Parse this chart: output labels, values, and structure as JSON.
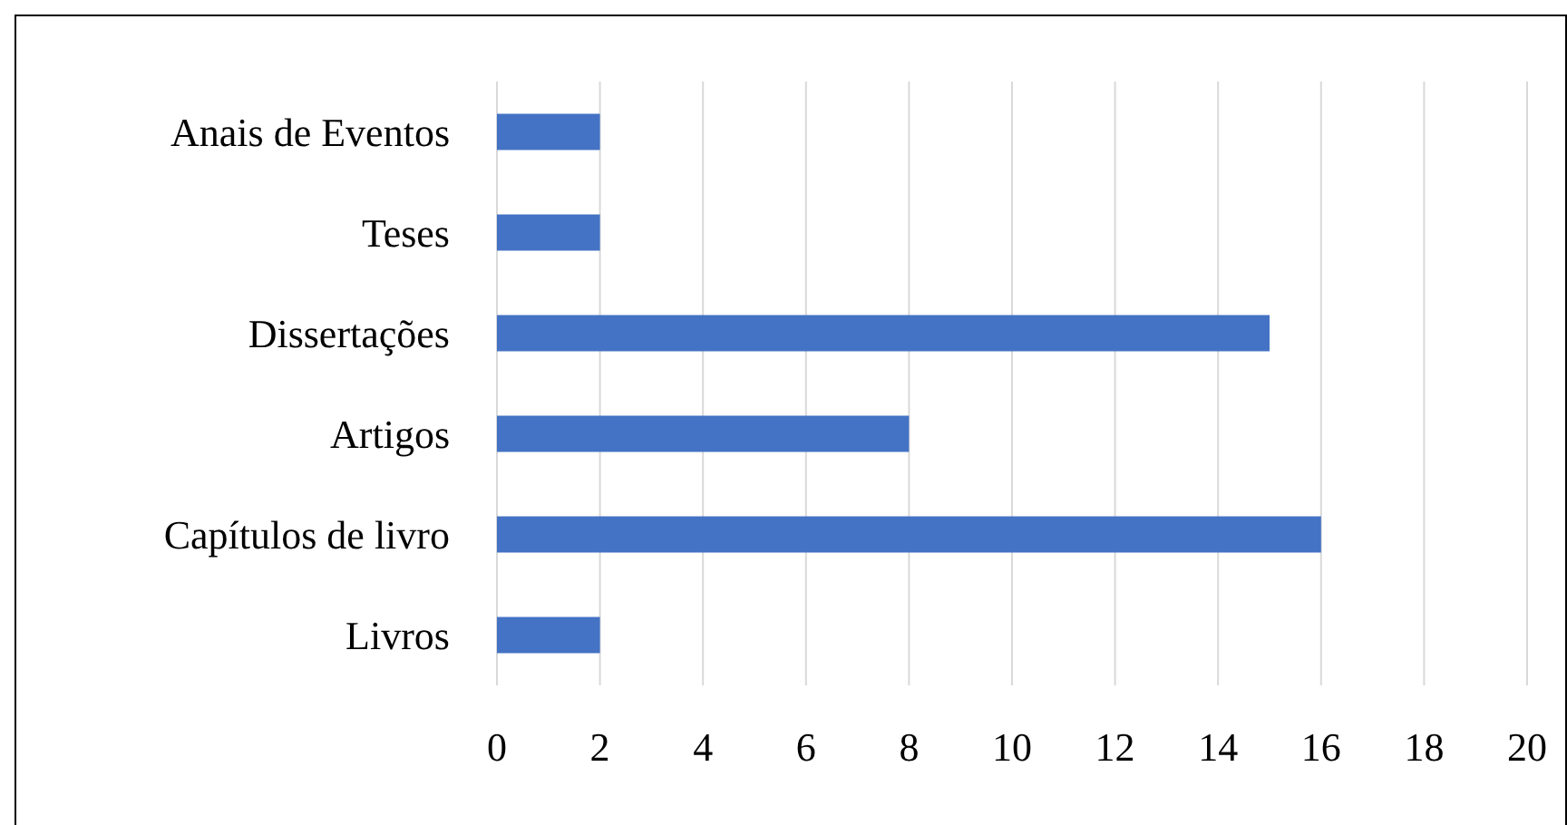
{
  "chart_data": {
    "type": "bar",
    "orientation": "horizontal",
    "categories": [
      "Anais de Eventos",
      "Teses",
      "Dissertações",
      "Artigos",
      "Capítulos de livro",
      "Livros"
    ],
    "values": [
      2,
      2,
      15,
      8,
      16,
      2
    ],
    "color": "#4472c4",
    "xlim": [
      0,
      20
    ],
    "xticks": [
      0,
      2,
      4,
      6,
      8,
      10,
      12,
      14,
      16,
      18,
      20
    ],
    "grid": "x"
  }
}
